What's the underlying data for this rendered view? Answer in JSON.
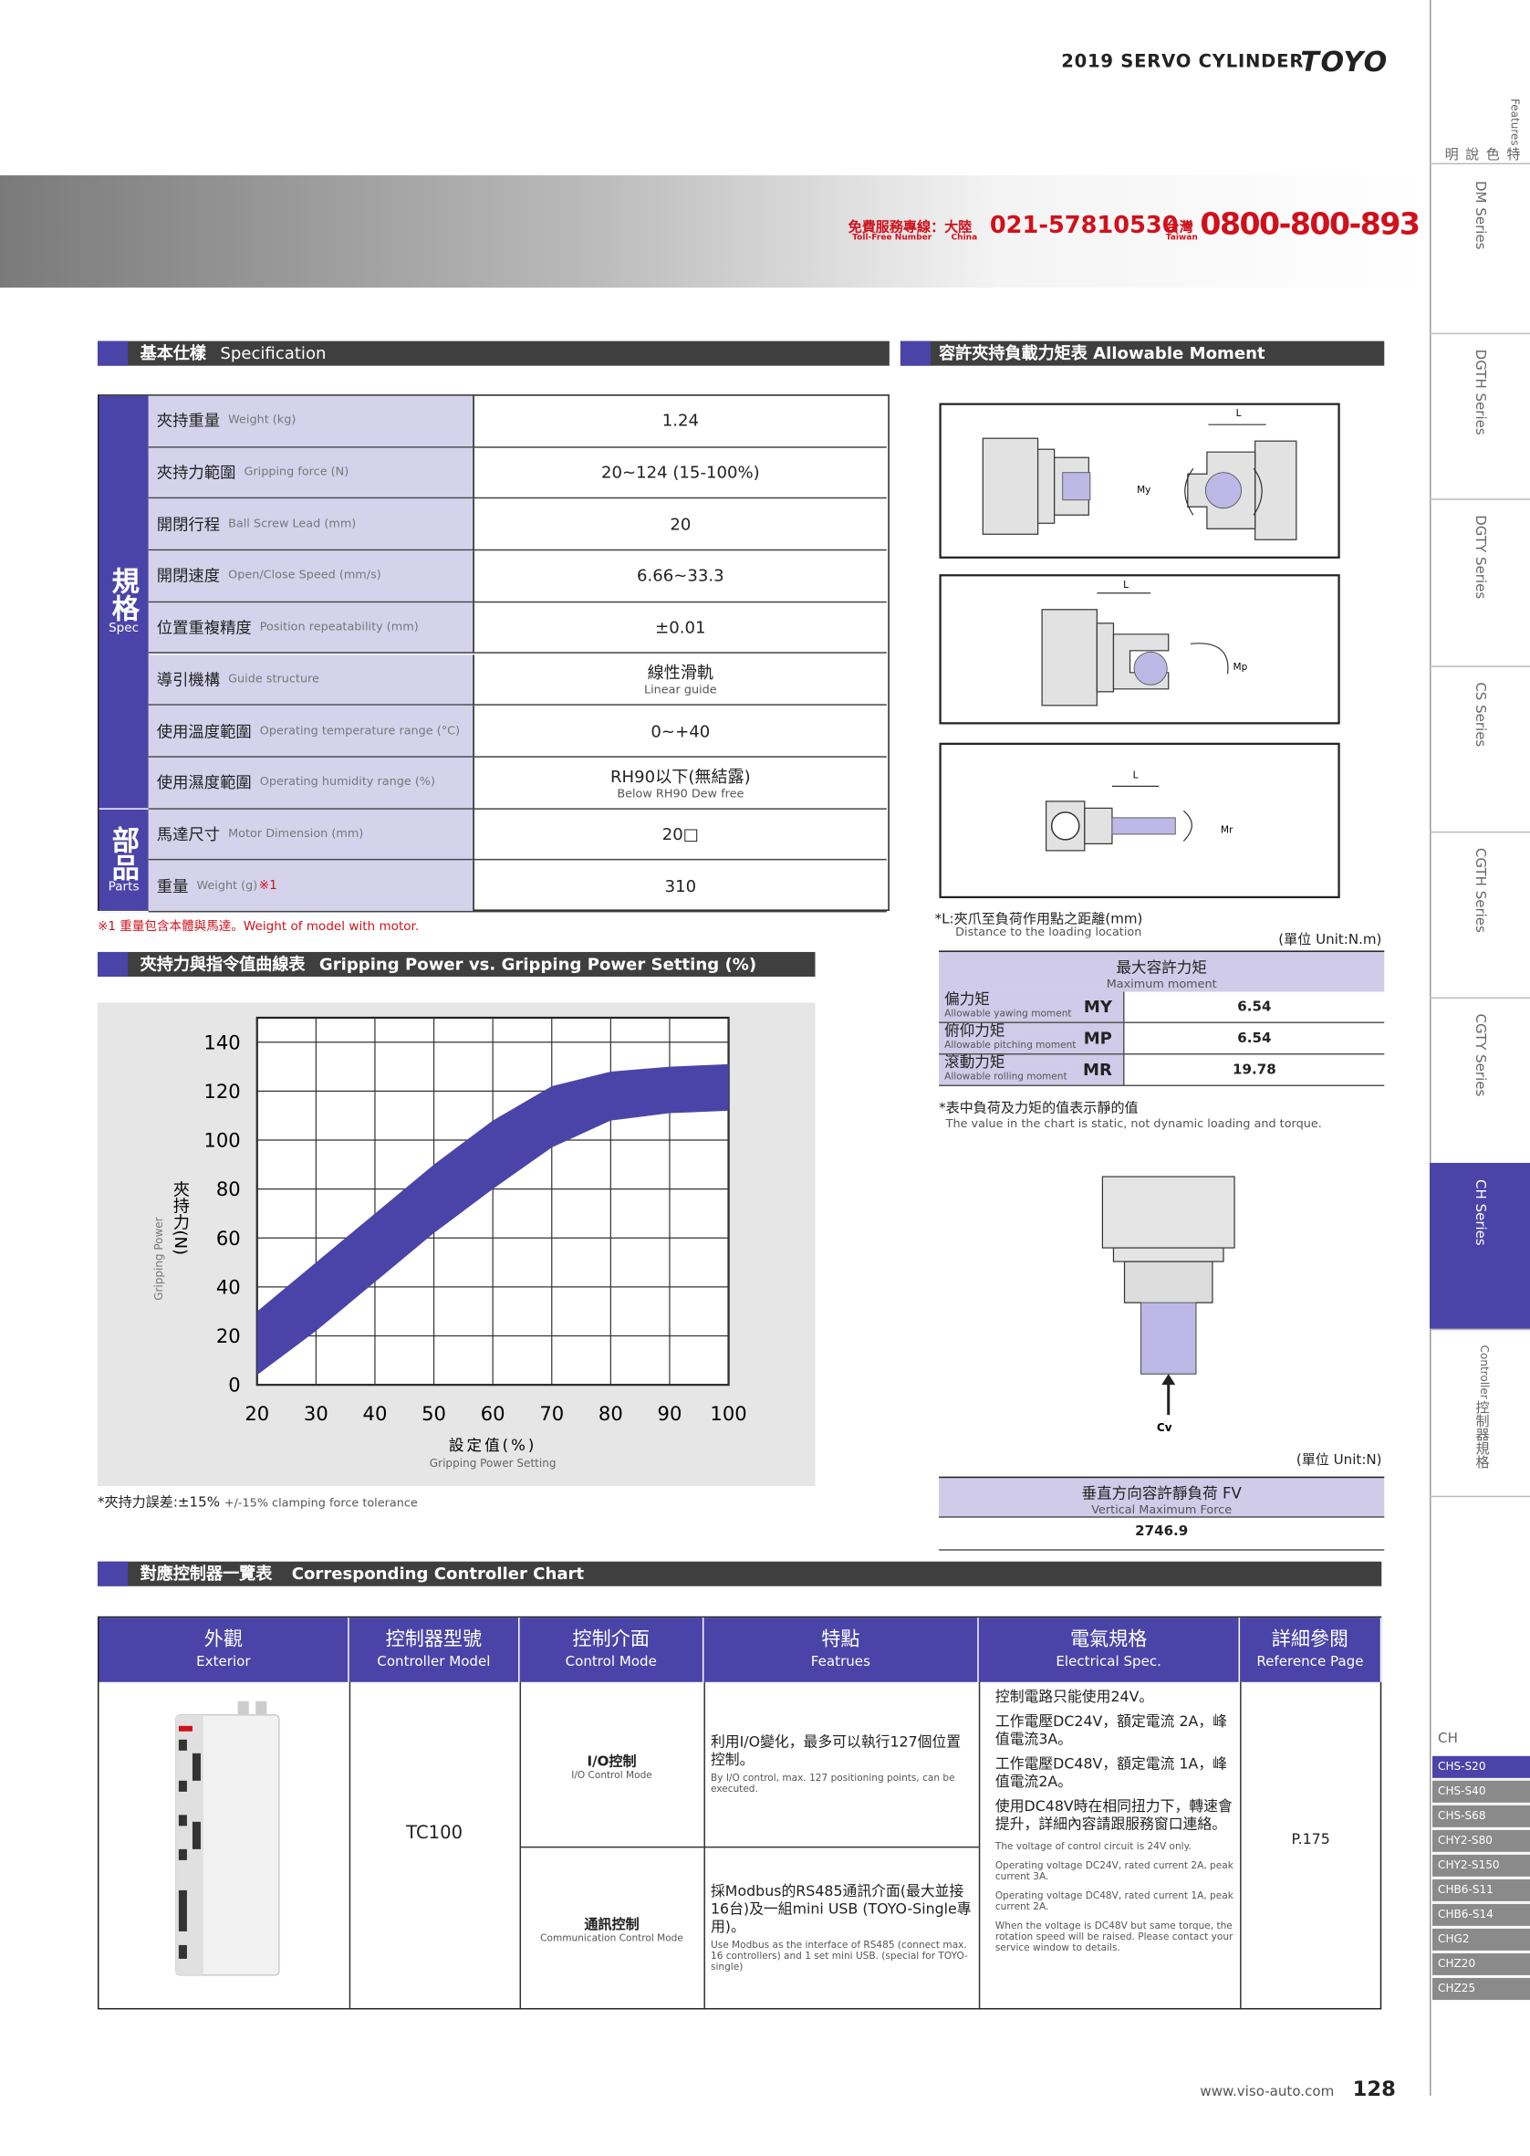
{
  "header": {
    "title": "2019 SERVO CYLINDER",
    "logo": "TOYO"
  },
  "banner": {
    "service_cn": "免費服務專線：",
    "service_en": "Toll-Free Number",
    "china_cn": "大陸",
    "china_en": "China",
    "china_phone": "021-57810530",
    "taiwan_cn": "台灣",
    "taiwan_en": "Taiwan",
    "taiwan_phone": "0800-800-893"
  },
  "side_tabs": [
    {
      "cn": "特色說明",
      "en": "Features"
    },
    {
      "en": "DM Series"
    },
    {
      "en": "DGTH Series"
    },
    {
      "en": "DGTY Series"
    },
    {
      "en": "CS Series"
    },
    {
      "en": "CGTH Series"
    },
    {
      "en": "CGTY Series"
    },
    {
      "en": "CH Series"
    },
    {
      "cn": "控制器規格",
      "en": "Controller"
    }
  ],
  "model_list": {
    "title": "CH",
    "items": [
      "CHS-S20",
      "CHS-S40",
      "CHS-S68",
      "CHY2-S80",
      "CHY2-S150",
      "CHB6-S11",
      "CHB6-S14",
      "CHG2",
      "CHZ20",
      "CHZ25"
    ]
  },
  "spec": {
    "title_cn": "基本仕樣",
    "title_en": "Specification",
    "groups": [
      {
        "cn": "規格",
        "en": "Spec",
        "rows": [
          {
            "label_cn": "夾持重量",
            "label_en": "Weight (kg)",
            "value": "1.24"
          },
          {
            "label_cn": "夾持力範圍",
            "label_en": "Gripping force (N)",
            "value": "20~124 (15-100%)"
          },
          {
            "label_cn": "開閉行程",
            "label_en": "Ball Screw Lead (mm)",
            "value": "20"
          },
          {
            "label_cn": "開閉速度",
            "label_en": "Open/Close Speed (mm/s)",
            "value": "6.66~33.3"
          },
          {
            "label_cn": "位置重複精度",
            "label_en": "Position repeatability (mm)",
            "value": "±0.01"
          },
          {
            "label_cn": "導引機構",
            "label_en": "Guide structure",
            "value": "線性滑軌",
            "value_sub": "Linear guide"
          },
          {
            "label_cn": "使用溫度範圍",
            "label_en": "Operating temperature range (°C)",
            "value": "0~+40"
          },
          {
            "label_cn": "使用濕度範圍",
            "label_en": "Operating humidity range (%)",
            "value": "RH90以下(無結露)",
            "value_sub": "Below RH90 Dew free"
          }
        ]
      },
      {
        "cn": "部品",
        "en": "Parts",
        "rows": [
          {
            "label_cn": "馬達尺寸",
            "label_en": "Motor Dimension (mm)",
            "value": "20□"
          },
          {
            "label_cn": "重量",
            "label_en": "Weight (g)",
            "mark": "※1",
            "value": "310"
          }
        ]
      }
    ],
    "note": "※1 重量包含本體與馬達。Weight of model with motor."
  },
  "chart": {
    "type": "band",
    "title_cn": "夾持力與指令值曲線表",
    "title_en": "Gripping Power vs. Gripping Power Setting (%)",
    "y_label_cn": "夾持力(N)",
    "y_label_en": "Gripping Power",
    "x_label_cn": "設定值(%)",
    "x_label_en": "Gripping Power Setting",
    "x": [
      20,
      30,
      40,
      50,
      60,
      70,
      80,
      90,
      100
    ],
    "upper": [
      30,
      50,
      70,
      90,
      108,
      122,
      128,
      130,
      131
    ],
    "lower": [
      4,
      22,
      42,
      62,
      80,
      97,
      108,
      111,
      112
    ],
    "color": "#4a44a8",
    "xlim": [
      20,
      100
    ],
    "ylim": [
      0,
      150
    ],
    "xticks": [
      20,
      30,
      40,
      50,
      60,
      70,
      80,
      90,
      100
    ],
    "yticks": [
      0,
      20,
      40,
      60,
      80,
      100,
      120,
      140
    ],
    "grid": true,
    "note_cn": "*夾持力誤差:±15%",
    "note_en": "+/-15% clamping force tolerance"
  },
  "moment": {
    "title_cn": "容許夾持負載力矩表",
    "title_en": "Allowable Moment",
    "dim": "L",
    "labels": [
      "My",
      "Mp",
      "Mr"
    ],
    "note_cn": "*L:夾爪至負荷作用點之距離(mm)",
    "note_en": "Distance to the loading location",
    "unit": "(單位  Unit:N.m)",
    "head_cn": "最大容許力矩",
    "head_en": "Maximum moment",
    "rows": [
      {
        "cn": "偏力矩",
        "en": "Allowable yawing moment",
        "code": "MY",
        "value": "6.54"
      },
      {
        "cn": "俯仰力矩",
        "en": "Allowable pitching moment",
        "code": "MP",
        "value": "6.54"
      },
      {
        "cn": "滾動力矩",
        "en": "Allowable rolling moment",
        "code": "MR",
        "value": "19.78"
      }
    ],
    "static_cn": "*表中負荷及力矩的值表示靜的值",
    "static_en": "The value in the chart is static, not dynamic loading and torque.",
    "cv": "Cv",
    "unit2": "(單位  Unit:N)",
    "fv_cn": "垂直方向容許靜負荷 FV",
    "fv_en": "Vertical Maximum Force",
    "fv_value": "2746.9"
  },
  "controller": {
    "title_cn": "對應控制器一覽表",
    "title_en": "Corresponding Controller Chart",
    "headers": [
      {
        "cn": "外觀",
        "en": "Exterior"
      },
      {
        "cn": "控制器型號",
        "en": "Controller Model"
      },
      {
        "cn": "控制介面",
        "en": "Control Mode"
      },
      {
        "cn": "特點",
        "en": "Featrues"
      },
      {
        "cn": "電氣規格",
        "en": "Electrical Spec."
      },
      {
        "cn": "詳細參閱",
        "en": "Reference Page"
      }
    ],
    "model": "TC100",
    "modes": [
      {
        "cn": "I/O控制",
        "en": "I/O Control Mode",
        "feature_cn": "利用I/O變化，最多可以執行127個位置控制。",
        "feature_en": "By I/O control, max. 127 positioning points, can be executed."
      },
      {
        "cn": "通訊控制",
        "en": "Communication Control Mode",
        "feature_cn": "採Modbus的RS485通訊介面(最大並接16台)及一組mini USB (TOYO-Single專用)。",
        "feature_en": "Use Modbus as the interface of RS485 (connect max. 16 controllers) and 1 set mini USB. (special for TOYO-single)"
      }
    ],
    "electrical_cn": [
      "控制電路只能使用24V。",
      "工作電壓DC24V，額定電流 2A，峰值電流3A。",
      "工作電壓DC48V，額定電流 1A，峰值電流2A。",
      "使用DC48V時在相同扭力下，轉速會提升，詳細內容請跟服務窗口連絡。"
    ],
    "electrical_en": [
      "The voltage of control circuit is 24V only.",
      "Operating voltage DC24V, rated current 2A, peak current 3A.",
      "Operating voltage DC48V, rated current 1A, peak current 2A.",
      "When the voltage is DC48V but same torque, the rotation speed will be raised. Please contact your service window to details."
    ],
    "reference": "P.175"
  },
  "footer": {
    "url": "www.viso-auto.com",
    "page": "128"
  }
}
